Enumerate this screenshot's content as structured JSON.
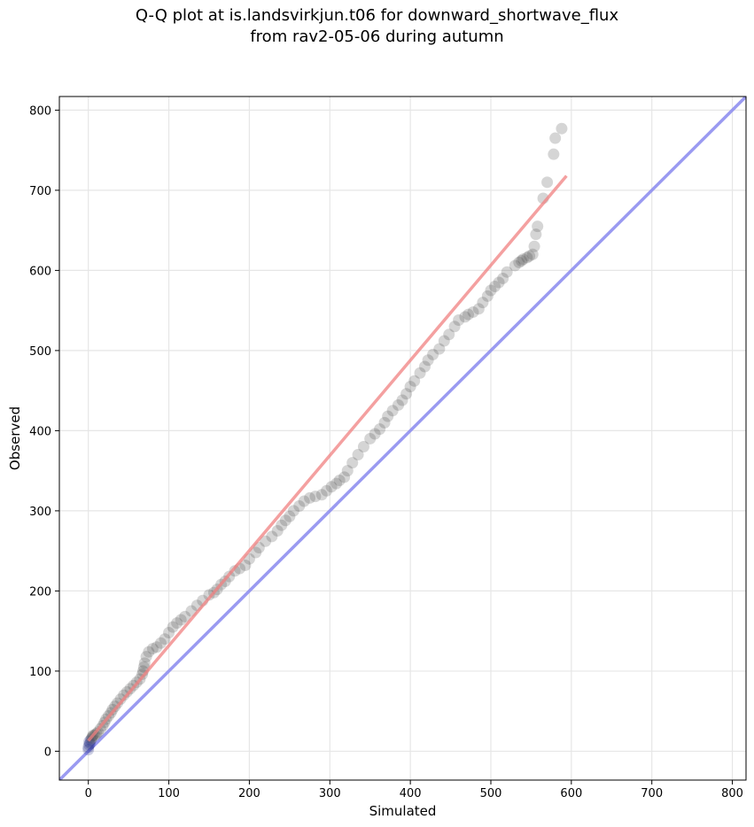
{
  "chart_data": {
    "type": "scatter",
    "title": "Q-Q plot at is.landsvirkjun.t06 for downward_shortwave_flux",
    "subtitle": "from rav2-05-06 during autumn",
    "xlabel": "Simulated",
    "ylabel": "Observed",
    "xlim": [
      -36,
      817
    ],
    "ylim": [
      -36,
      817
    ],
    "xticks": [
      0,
      100,
      200,
      300,
      400,
      500,
      600,
      700,
      800
    ],
    "yticks": [
      0,
      100,
      200,
      300,
      400,
      500,
      600,
      700,
      800
    ],
    "xtick_labels": [
      "0",
      "100",
      "200",
      "300",
      "400",
      "500",
      "600",
      "700",
      "800"
    ],
    "ytick_labels": [
      "0",
      "100",
      "200",
      "300",
      "400",
      "500",
      "600",
      "700",
      "800"
    ],
    "grid": true,
    "colors": {
      "points": "#404040",
      "fit_line": "#f08080",
      "identity_line": "#8888ee",
      "low_points": "#1a237e"
    },
    "series": [
      {
        "type": "points",
        "x": [
          0,
          0,
          1,
          1,
          2,
          3,
          4,
          5,
          6,
          8,
          10,
          12,
          15,
          18,
          20,
          22,
          25,
          28,
          30,
          33,
          36,
          40,
          44,
          48,
          52,
          56,
          60,
          64,
          67,
          68,
          69,
          70,
          72,
          75,
          80,
          85,
          90,
          95,
          100,
          105,
          110,
          115,
          120,
          128,
          135,
          142,
          150,
          156,
          160,
          165,
          170,
          175,
          182,
          188,
          195,
          200,
          208,
          212,
          220,
          228,
          235,
          240,
          245,
          250,
          255,
          262,
          268,
          275,
          282,
          290,
          296,
          302,
          308,
          312,
          318,
          322,
          328,
          335,
          342,
          350,
          356,
          362,
          368,
          372,
          378,
          385,
          390,
          395,
          400,
          405,
          412,
          418,
          422,
          428,
          436,
          442,
          448,
          455,
          460,
          468,
          472,
          478,
          485,
          490,
          496,
          500,
          505,
          510,
          515,
          520,
          530,
          535,
          538,
          540,
          545,
          548,
          552,
          554,
          556,
          558,
          565,
          570,
          578,
          580,
          588
        ],
        "y": [
          2,
          5,
          8,
          12,
          10,
          14,
          16,
          18,
          20,
          20,
          22,
          24,
          28,
          32,
          36,
          40,
          44,
          48,
          52,
          56,
          60,
          65,
          70,
          74,
          78,
          82,
          86,
          90,
          96,
          100,
          105,
          110,
          118,
          124,
          128,
          130,
          135,
          140,
          148,
          155,
          160,
          164,
          168,
          175,
          182,
          188,
          195,
          198,
          202,
          208,
          212,
          218,
          225,
          228,
          232,
          240,
          248,
          254,
          262,
          268,
          275,
          282,
          288,
          293,
          300,
          306,
          312,
          316,
          318,
          320,
          325,
          330,
          334,
          338,
          342,
          350,
          360,
          370,
          380,
          390,
          396,
          402,
          410,
          418,
          425,
          432,
          438,
          446,
          455,
          462,
          472,
          480,
          488,
          495,
          502,
          512,
          520,
          530,
          538,
          542,
          545,
          548,
          552,
          560,
          568,
          575,
          580,
          585,
          590,
          598,
          606,
          610,
          612,
          614,
          616,
          618,
          620,
          630,
          645,
          655,
          690,
          710,
          745,
          765,
          777
        ]
      },
      {
        "type": "fit_line",
        "x": [
          0,
          594
        ],
        "y": [
          13,
          718
        ]
      },
      {
        "type": "identity_line",
        "x": [
          -36,
          817
        ],
        "y": [
          -36,
          817
        ]
      }
    ]
  }
}
